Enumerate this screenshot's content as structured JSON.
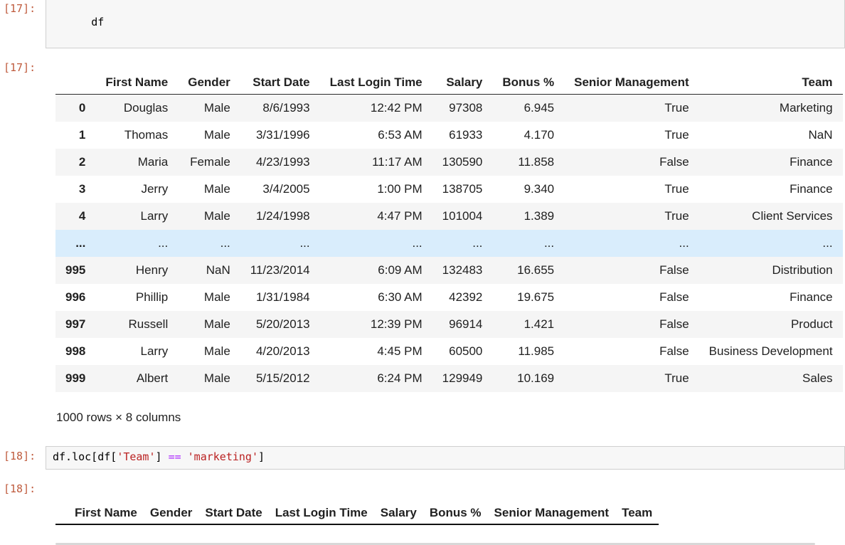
{
  "colors": {
    "prompt": "#bf5b3d",
    "code-string": "#ba2121",
    "code-operator": "#aa22ff",
    "row-stripe": "#f5f5f5",
    "row-hover": "#d9edfc",
    "cell-border": "#cfcfcf",
    "cell-bg": "#f7f7f7",
    "text": "#212121"
  },
  "cell_in_17": {
    "prompt": "[17]:",
    "code": "df"
  },
  "cell_out_17": {
    "prompt": "[17]:"
  },
  "dataframe": {
    "index_header": "",
    "columns": [
      "First Name",
      "Gender",
      "Start Date",
      "Last Login Time",
      "Salary",
      "Bonus %",
      "Senior Management",
      "Team"
    ],
    "rows": [
      {
        "index": "0",
        "hover": false,
        "values": [
          "Douglas",
          "Male",
          "8/6/1993",
          "12:42 PM",
          "97308",
          "6.945",
          "True",
          "Marketing"
        ]
      },
      {
        "index": "1",
        "hover": false,
        "values": [
          "Thomas",
          "Male",
          "3/31/1996",
          "6:53 AM",
          "61933",
          "4.170",
          "True",
          "NaN"
        ]
      },
      {
        "index": "2",
        "hover": false,
        "values": [
          "Maria",
          "Female",
          "4/23/1993",
          "11:17 AM",
          "130590",
          "11.858",
          "False",
          "Finance"
        ]
      },
      {
        "index": "3",
        "hover": false,
        "values": [
          "Jerry",
          "Male",
          "3/4/2005",
          "1:00 PM",
          "138705",
          "9.340",
          "True",
          "Finance"
        ]
      },
      {
        "index": "4",
        "hover": false,
        "values": [
          "Larry",
          "Male",
          "1/24/1998",
          "4:47 PM",
          "101004",
          "1.389",
          "True",
          "Client Services"
        ]
      },
      {
        "index": "...",
        "hover": true,
        "values": [
          "...",
          "...",
          "...",
          "...",
          "...",
          "...",
          "...",
          "..."
        ]
      },
      {
        "index": "995",
        "hover": false,
        "values": [
          "Henry",
          "NaN",
          "11/23/2014",
          "6:09 AM",
          "132483",
          "16.655",
          "False",
          "Distribution"
        ]
      },
      {
        "index": "996",
        "hover": false,
        "values": [
          "Phillip",
          "Male",
          "1/31/1984",
          "6:30 AM",
          "42392",
          "19.675",
          "False",
          "Finance"
        ]
      },
      {
        "index": "997",
        "hover": false,
        "values": [
          "Russell",
          "Male",
          "5/20/2013",
          "12:39 PM",
          "96914",
          "1.421",
          "False",
          "Product"
        ]
      },
      {
        "index": "998",
        "hover": false,
        "values": [
          "Larry",
          "Male",
          "4/20/2013",
          "4:45 PM",
          "60500",
          "11.985",
          "False",
          "Business Development"
        ]
      },
      {
        "index": "999",
        "hover": false,
        "values": [
          "Albert",
          "Male",
          "5/15/2012",
          "6:24 PM",
          "129949",
          "10.169",
          "True",
          "Sales"
        ]
      }
    ],
    "summary": "1000 rows × 8 columns"
  },
  "cell_in_18": {
    "prompt": "[18]:",
    "tokens": [
      {
        "text": "df.loc[df[",
        "type": "plain"
      },
      {
        "text": "'Team'",
        "type": "string"
      },
      {
        "text": "] ",
        "type": "plain"
      },
      {
        "text": "==",
        "type": "operator"
      },
      {
        "text": " ",
        "type": "plain"
      },
      {
        "text": "'marketing'",
        "type": "string"
      },
      {
        "text": "]",
        "type": "plain"
      }
    ]
  },
  "cell_out_18": {
    "prompt": "[18]:",
    "index_header": "",
    "columns": [
      "First Name",
      "Gender",
      "Start Date",
      "Last Login Time",
      "Salary",
      "Bonus %",
      "Senior Management",
      "Team"
    ]
  }
}
